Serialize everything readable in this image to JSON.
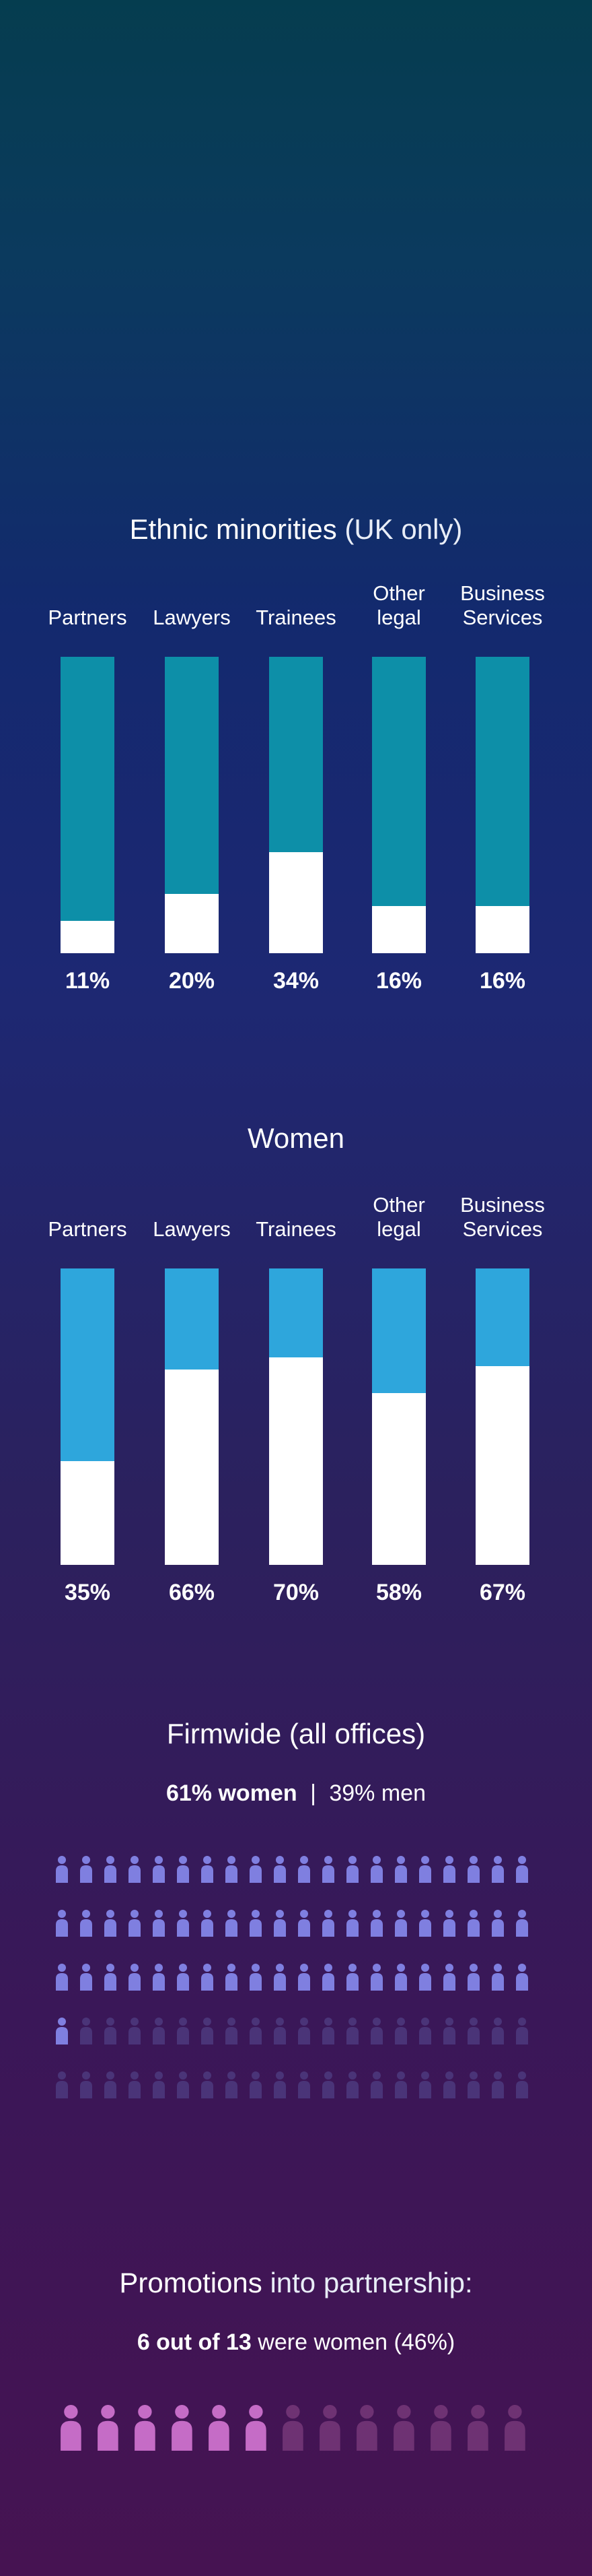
{
  "colors": {
    "ethnic_bar": "#0d8fa8",
    "women_bar": "#2ea6dc",
    "fill": "#ffffff",
    "firm_women_icon": "#7f7fe0",
    "firm_men_icon": "#4a3478",
    "promo_women_icon": "#c56cc6",
    "promo_men_icon": "#6e3273"
  },
  "ethnic": {
    "title_main": "Ethnic minorities",
    "title_light": "(UK only)"
  },
  "women": {
    "title": "Women"
  },
  "firmwide": {
    "title": "Firmwide (all offices)",
    "women_text": "61% women",
    "separator": "|",
    "men_text": "39% men",
    "women_percent": 61,
    "icon_count": 100
  },
  "promotions": {
    "title_bold": "Promotions",
    "title_light": "into partnership:",
    "sub_bold": "6 out of 13",
    "sub_light": "were women (46%)",
    "women_count": 6,
    "total": 13
  },
  "chart_data": [
    {
      "type": "bar",
      "title": "Ethnic minorities (UK only)",
      "categories": [
        "Partners",
        "Lawyers",
        "Trainees",
        "Other legal",
        "Business Services"
      ],
      "category_lines": [
        [
          "Partners"
        ],
        [
          "Lawyers"
        ],
        [
          "Trainees"
        ],
        [
          "Other",
          "legal"
        ],
        [
          "Business",
          "Services"
        ]
      ],
      "values": [
        11,
        20,
        34,
        16,
        16
      ],
      "labels": [
        "11%",
        "20%",
        "34%",
        "16%",
        "16%"
      ],
      "ylim": [
        0,
        100
      ]
    },
    {
      "type": "bar",
      "title": "Women",
      "categories": [
        "Partners",
        "Lawyers",
        "Trainees",
        "Other legal",
        "Business Services"
      ],
      "category_lines": [
        [
          "Partners"
        ],
        [
          "Lawyers"
        ],
        [
          "Trainees"
        ],
        [
          "Other",
          "legal"
        ],
        [
          "Business",
          "Services"
        ]
      ],
      "values": [
        35,
        66,
        70,
        58,
        67
      ],
      "labels": [
        "35%",
        "66%",
        "70%",
        "58%",
        "67%"
      ],
      "ylim": [
        0,
        100
      ]
    }
  ]
}
